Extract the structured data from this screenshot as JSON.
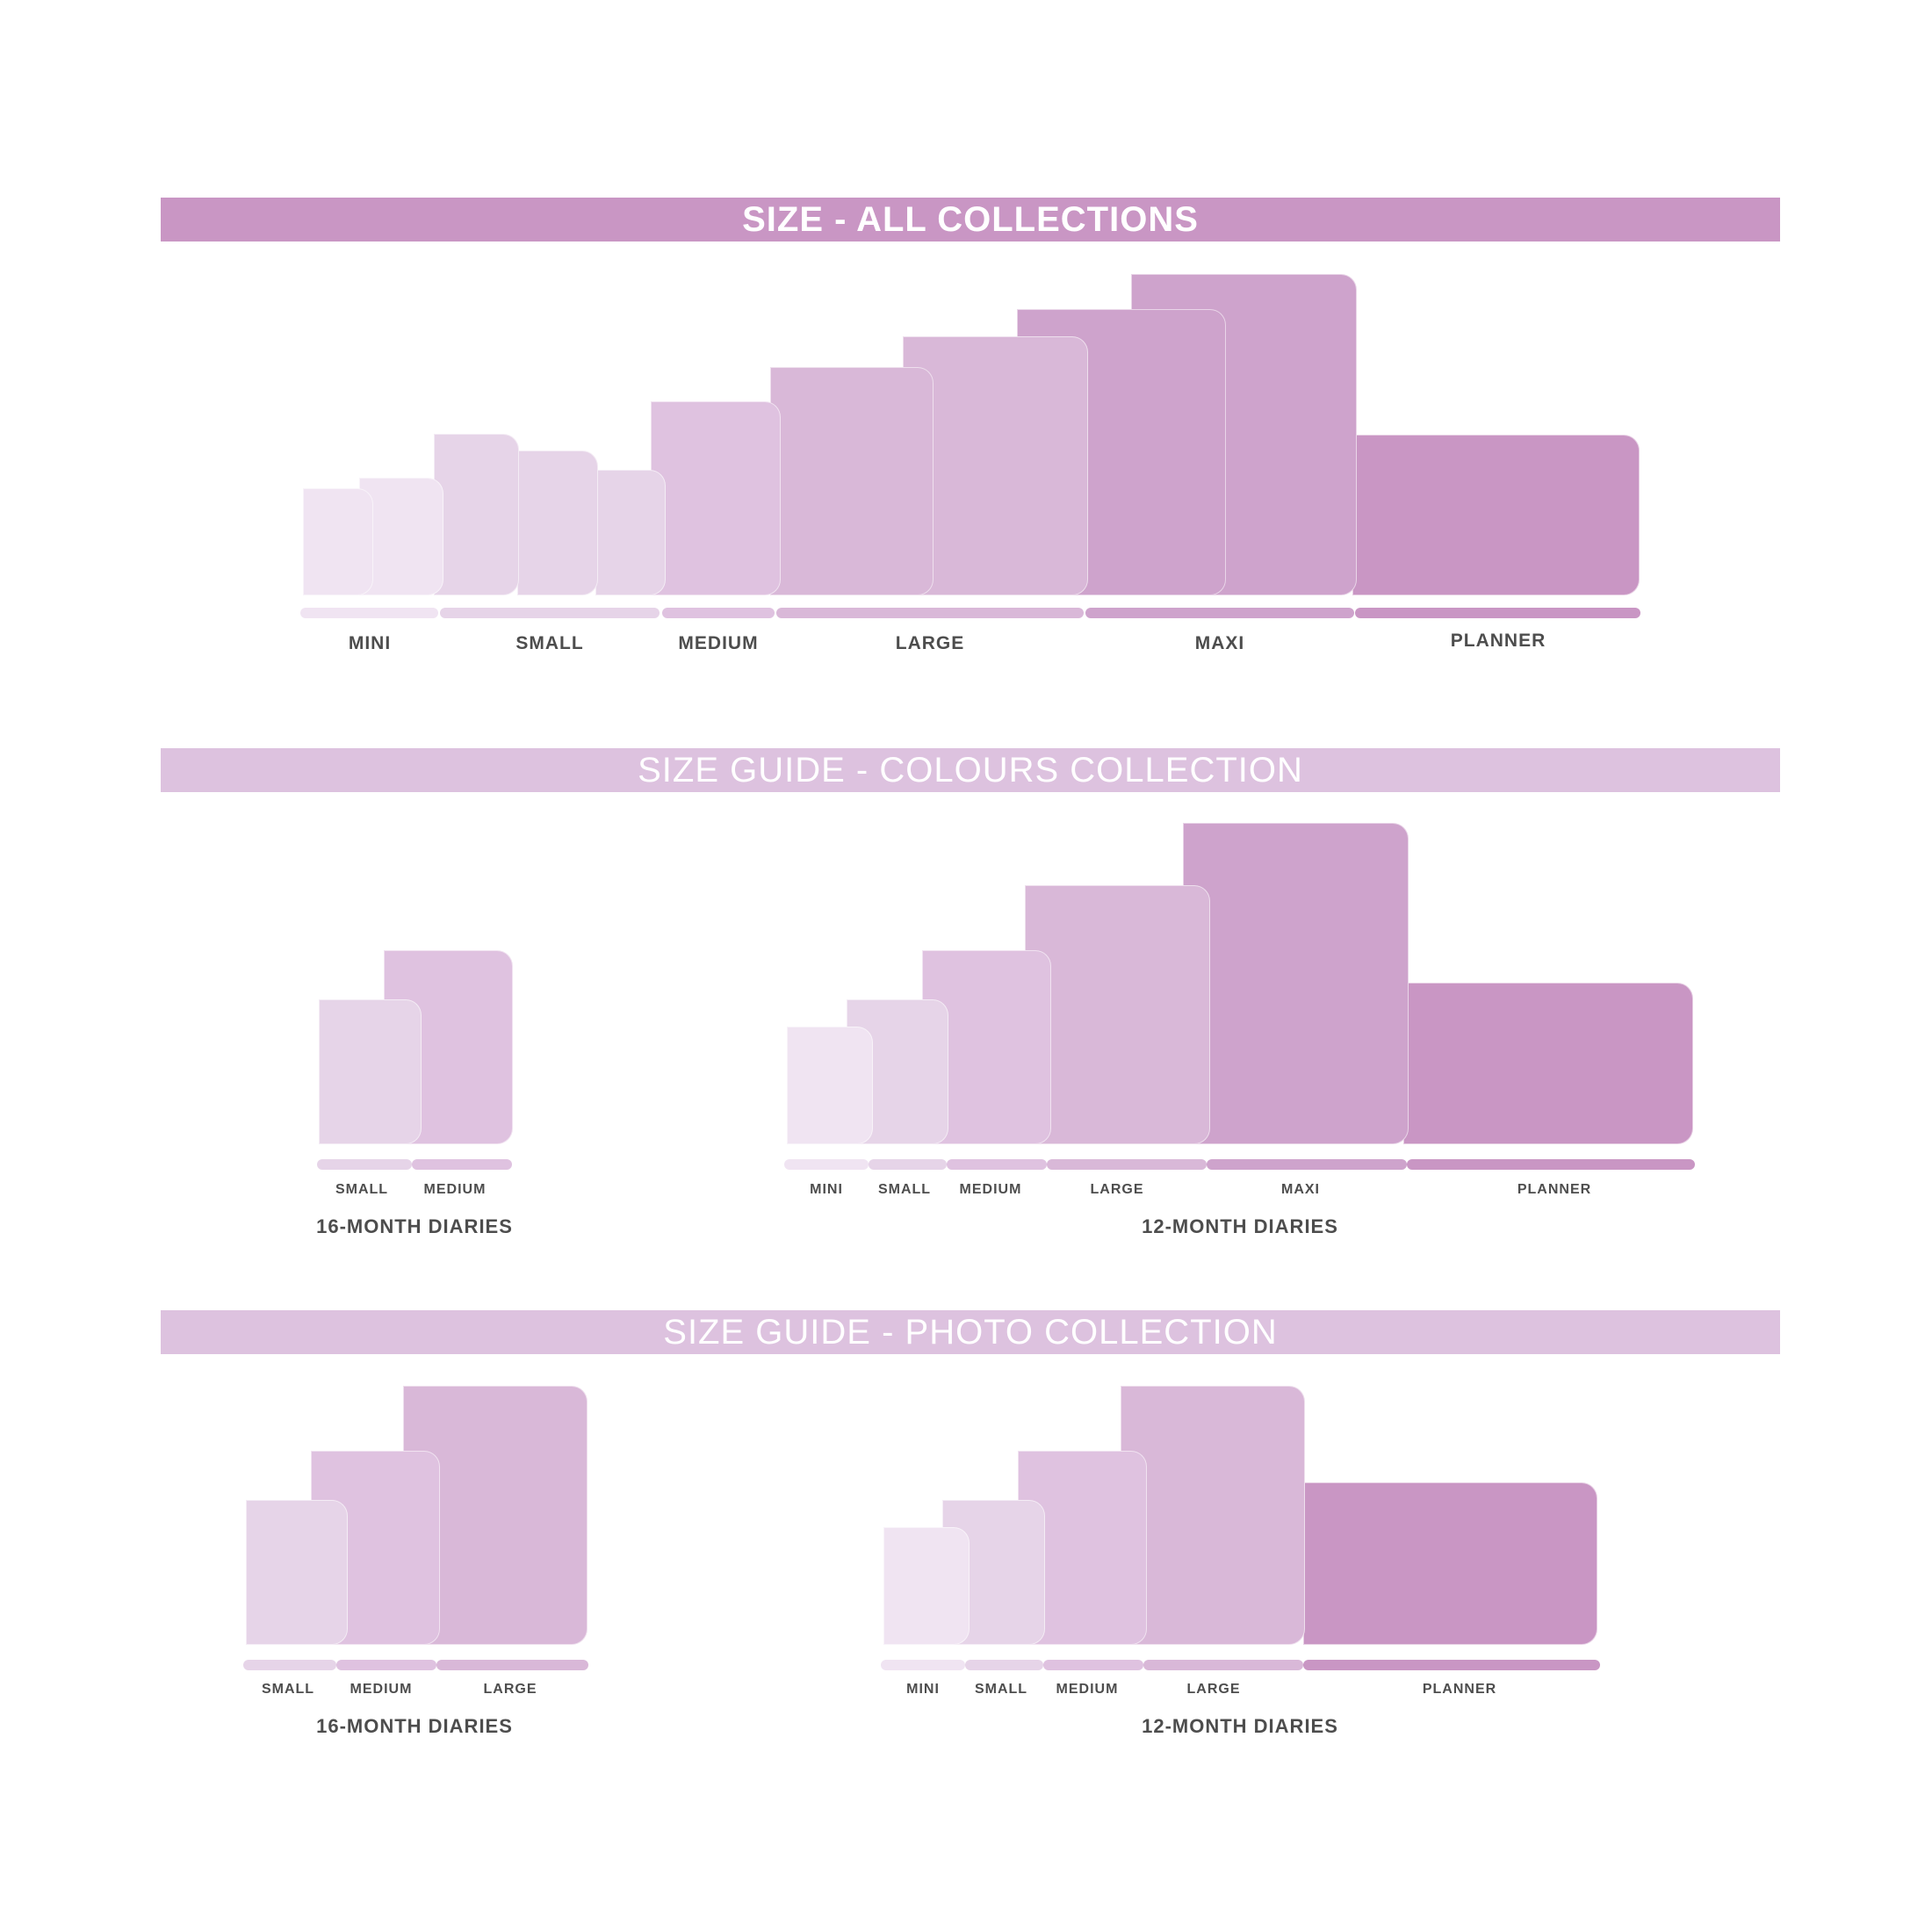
{
  "colors": {
    "banner_strong": "#c996c4",
    "banner_light": "#ddc2df",
    "mini": "#f0e4f2",
    "small": "#e6d4e8",
    "medium": "#dfc2e0",
    "large": "#d9b8d8",
    "maxi": "#cea3cc",
    "planner": "#c996c4",
    "text": "#4d4d4d"
  },
  "sections": {
    "all": {
      "title": "SIZE - ALL COLLECTIONS"
    },
    "colours": {
      "title": "SIZE GUIDE - COLOURS COLLECTION",
      "left_caption": "16-MONTH DIARIES",
      "right_caption": "12-MONTH DIARIES"
    },
    "photo": {
      "title": "SIZE GUIDE - PHOTO COLLECTION",
      "left_caption": "16-MONTH DIARIES",
      "right_caption": "12-MONTH DIARIES"
    }
  },
  "labels": {
    "mini": "MINI",
    "small": "SMALL",
    "medium": "MEDIUM",
    "large": "LARGE",
    "maxi": "MAXI",
    "planner": "PLANNER"
  }
}
